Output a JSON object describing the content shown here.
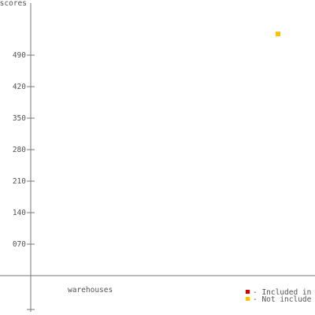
{
  "chart_data": {
    "type": "scatter",
    "ylabel": "scores",
    "xlabel": "warehouses",
    "yticks": [
      {
        "label": "490",
        "value": 490
      },
      {
        "label": "420",
        "value": 420
      },
      {
        "label": "350",
        "value": 350
      },
      {
        "label": "280",
        "value": 280
      },
      {
        "label": "210",
        "value": 210
      },
      {
        "label": "140",
        "value": 140
      },
      {
        "label": "070",
        "value": 70
      }
    ],
    "ylim": [
      0,
      560
    ],
    "series": [
      {
        "name": "- Included in",
        "color": "#cc0000",
        "points": []
      },
      {
        "name": "- Not include",
        "color": "#ffc000",
        "points": [
          {
            "x": 1,
            "y": 537
          }
        ]
      }
    ],
    "grid": false,
    "legend_position": "bottom-right"
  }
}
